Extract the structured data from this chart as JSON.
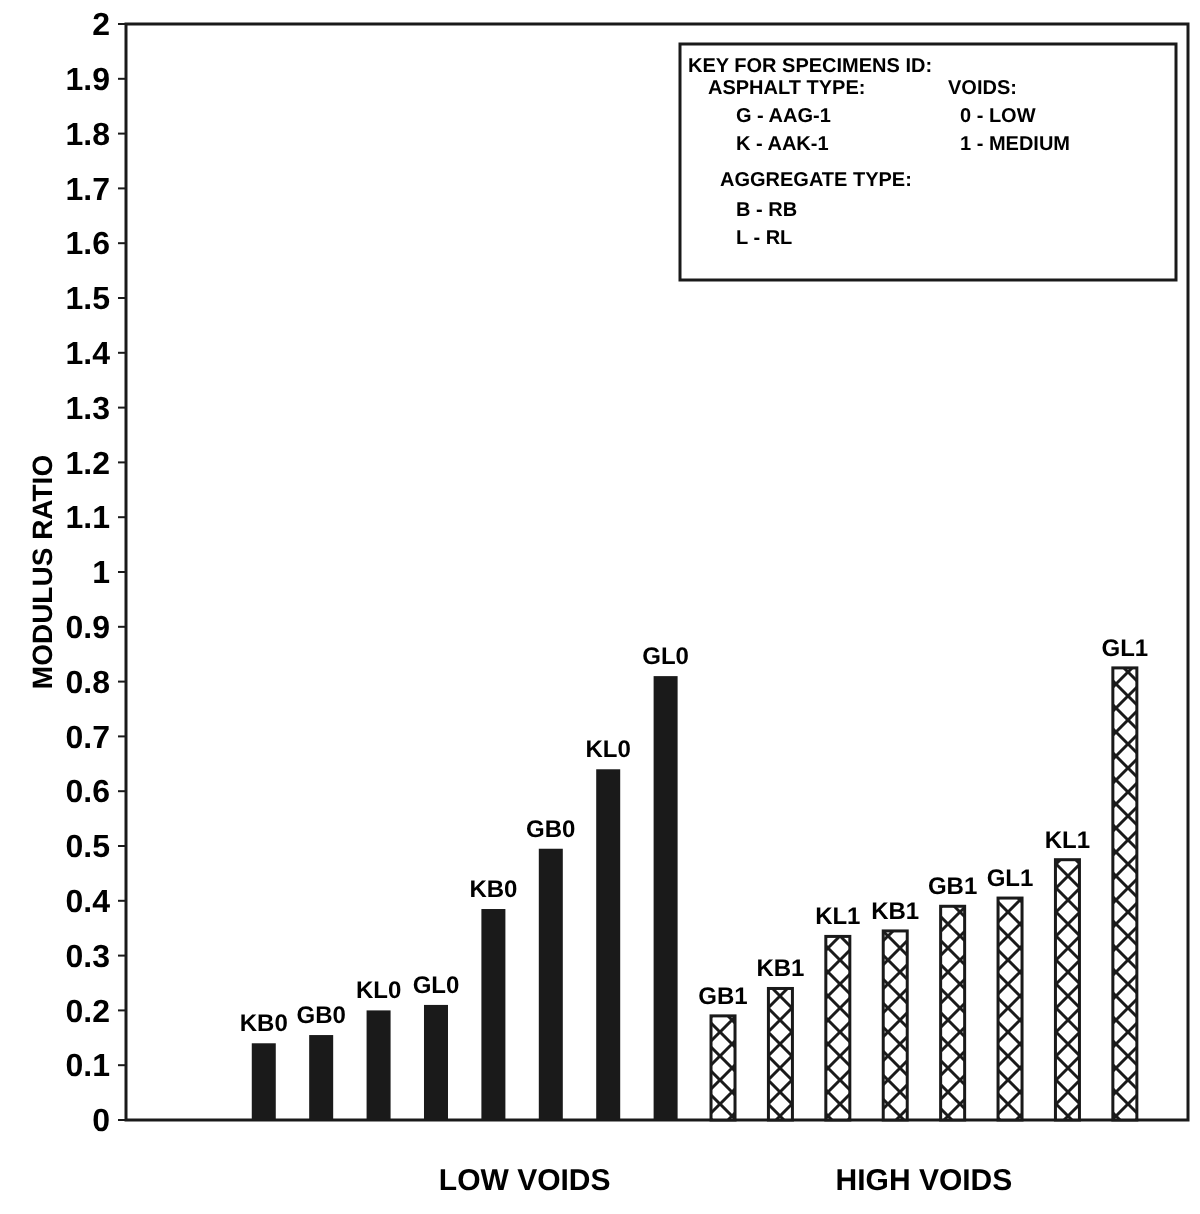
{
  "chart_data": {
    "type": "bar",
    "ylabel": "MODULUS RATIO",
    "categories": [
      null,
      null,
      null,
      null,
      null,
      null,
      null,
      null,
      null,
      null,
      null,
      null,
      null,
      null,
      null,
      null
    ],
    "series": [
      {
        "colors": [
          "#1a1a1a",
          "#1a1a1a",
          "#1a1a1a",
          "#1a1a1a",
          "#1a1a1a",
          "#1a1a1a",
          "#1a1a1a",
          "#1a1a1a",
          "#1a1a1a",
          "#1a1a1a",
          "#1a1a1a",
          "#1a1a1a",
          "#1a1a1a",
          "#1a1a1a",
          "#1a1a1a",
          "#1a1a1a"
        ],
        "values": [
          0.14,
          0.155,
          0.2,
          0.21,
          0.385,
          0.495,
          0.64,
          0.81,
          0.19,
          0.24,
          0.335,
          0.345,
          0.39,
          0.405,
          0.475,
          0.825
        ],
        "value_labels": [
          "KB0",
          "GB0",
          "KL0",
          "GL0",
          "KB0",
          "GB0",
          "KL0",
          "GL0",
          "GB1",
          "KB1",
          "KL1",
          "KB1",
          "GB1",
          "GL1",
          "KL1",
          "GL1"
        ]
      }
    ],
    "ylim": [
      0,
      2
    ],
    "yticks": [
      0,
      0.1,
      0.2,
      0.3,
      0.4,
      0.5,
      0.6,
      0.7,
      0.8,
      0.9,
      1,
      1.1,
      1.2,
      1.3,
      1.4,
      1.5,
      1.6,
      1.7,
      1.8,
      1.9,
      2
    ],
    "grid": false,
    "annotations": [
      "LOW VOIDS",
      "HIGH VOIDS",
      "KEY FOR SPECIMENS ID:",
      "ASPHALT TYPE:",
      "VOIDS:",
      "G - AAG-1",
      "0 - LOW",
      "K - AAK-1",
      "1 - MEDIUM",
      "AGGREGATE TYPE:",
      "B - RB",
      "L - RL"
    ]
  }
}
